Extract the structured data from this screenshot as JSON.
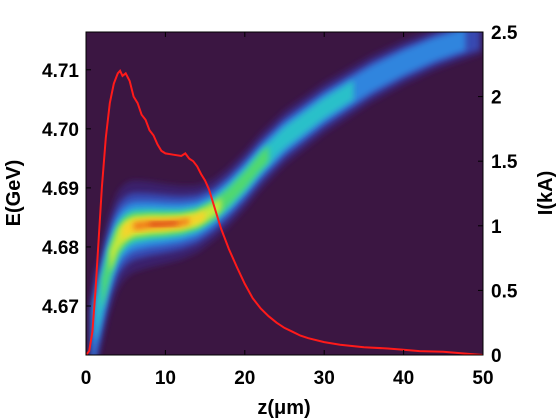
{
  "chart_data": {
    "type": "heatmap",
    "title": "",
    "xlabel": "z(μm)",
    "ylabel_left": "E(GeV)",
    "ylabel_right": "I(kA)",
    "xlim": [
      0,
      50
    ],
    "ylim_left": [
      4.6617,
      4.7164
    ],
    "ylim_right": [
      0,
      2.5
    ],
    "x_ticks": [
      0,
      10,
      20,
      30,
      40,
      50
    ],
    "y_ticks_left": [
      4.67,
      4.68,
      4.69,
      4.7,
      4.71
    ],
    "y_ticks_right": [
      0,
      0.5,
      1,
      1.5,
      2,
      2.5
    ],
    "grid": false,
    "legend": "none",
    "colors": {
      "background": "#3b1642",
      "current_line": "#ff1a1a"
    },
    "series": [
      {
        "kind": "phase-space density (z vs E)",
        "centerline": {
          "x": [
            0.5,
            1,
            2,
            3,
            4,
            5,
            6,
            8,
            10,
            12,
            14,
            16,
            18,
            20,
            22,
            25,
            28,
            30,
            33,
            36,
            40,
            44,
            47,
            50
          ],
          "y": [
            4.6625,
            4.666,
            4.672,
            4.6775,
            4.6812,
            4.6828,
            4.6835,
            4.6838,
            4.6839,
            4.6841,
            4.6847,
            4.6862,
            4.6885,
            4.6913,
            4.6945,
            4.6985,
            4.7015,
            4.7035,
            4.706,
            4.7085,
            4.7112,
            4.7135,
            4.7148,
            4.716
          ]
        }
      },
      {
        "kind": "current profile I(z)",
        "x": [
          0,
          0.4,
          0.8,
          1.2,
          1.6,
          2,
          2.5,
          3,
          3.5,
          4,
          4.3,
          4.6,
          5,
          5.5,
          6,
          6.5,
          7,
          7.5,
          8,
          8.5,
          9,
          9.5,
          10,
          11,
          12,
          12.5,
          13,
          13.5,
          14,
          14.5,
          15,
          15.5,
          16,
          16.5,
          17,
          18,
          19,
          20,
          21,
          22,
          23,
          24,
          25,
          26,
          27,
          28,
          30,
          32,
          35,
          38,
          40,
          42,
          45,
          48,
          50
        ],
        "y": [
          0,
          0.03,
          0.18,
          0.5,
          0.9,
          1.3,
          1.68,
          1.95,
          2.1,
          2.18,
          2.2,
          2.16,
          2.18,
          2.12,
          2.0,
          1.95,
          1.86,
          1.82,
          1.74,
          1.7,
          1.63,
          1.58,
          1.56,
          1.55,
          1.54,
          1.56,
          1.52,
          1.5,
          1.46,
          1.4,
          1.35,
          1.28,
          1.18,
          1.08,
          0.98,
          0.82,
          0.68,
          0.55,
          0.44,
          0.36,
          0.3,
          0.25,
          0.21,
          0.18,
          0.15,
          0.13,
          0.1,
          0.08,
          0.06,
          0.05,
          0.04,
          0.03,
          0.025,
          0.01,
          0.0
        ]
      }
    ]
  }
}
